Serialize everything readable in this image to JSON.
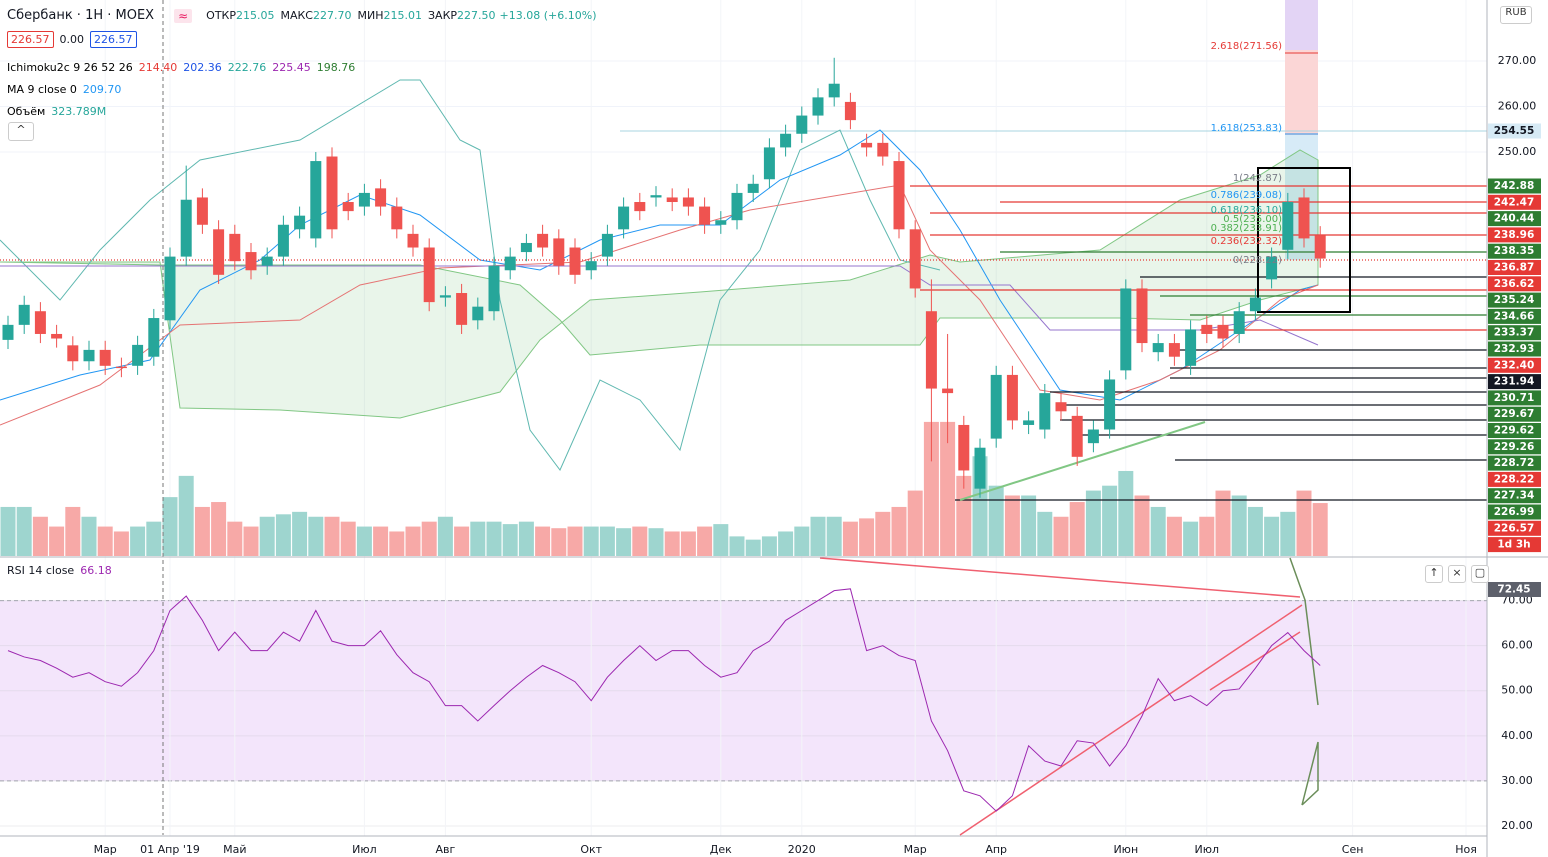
{
  "header": {
    "symbol": "Сбербанк · 1Н · MOEX",
    "ohlc": [
      {
        "label": "ОТКР",
        "value": "215.05"
      },
      {
        "label": "МАКС",
        "value": "227.70"
      },
      {
        "label": "МИН",
        "value": "215.01"
      },
      {
        "label": "ЗАКР",
        "value": "227.50"
      }
    ],
    "change": "+13.08 (+6.10%)",
    "boxes": [
      "226.57",
      "0.00",
      "226.57"
    ],
    "indicators": [
      {
        "name": "Ichimoku2c 9 26 52 26",
        "values": [
          "214.40",
          "202.36",
          "222.76",
          "225.45",
          "198.76"
        ],
        "colors": [
          "#e53935",
          "#1e53e5",
          "#26a69a",
          "#9c27b0",
          "#2e7d32"
        ]
      },
      {
        "name": "MA 9 close 0",
        "values": [
          "209.70"
        ],
        "colors": [
          "#2196f3"
        ]
      },
      {
        "name": "Объём",
        "values": [
          "323.789M"
        ],
        "colors": [
          "#26a69a"
        ]
      }
    ],
    "currency": "RUB"
  },
  "price_markers": [
    {
      "label": "254.55",
      "color": "#d6eaf5"
    },
    {
      "label": "242.88",
      "color": "#2e7d32"
    },
    {
      "label": "242.47",
      "color": "#e53935"
    },
    {
      "label": "240.44",
      "color": "#2e7d32"
    },
    {
      "label": "238.96",
      "color": "#e53935"
    },
    {
      "label": "238.35",
      "color": "#2e7d32"
    },
    {
      "label": "236.87",
      "color": "#e53935"
    },
    {
      "label": "236.62",
      "color": "#e53935"
    },
    {
      "label": "235.24",
      "color": "#2e7d32"
    },
    {
      "label": "234.66",
      "color": "#2e7d32"
    },
    {
      "label": "233.37",
      "color": "#2e7d32"
    },
    {
      "label": "232.93",
      "color": "#2e7d32"
    },
    {
      "label": "232.40",
      "color": "#e53935"
    },
    {
      "label": "231.94",
      "color": "#131722"
    },
    {
      "label": "230.71",
      "color": "#2e7d32"
    },
    {
      "label": "229.67",
      "color": "#2e7d32"
    },
    {
      "label": "229.62",
      "color": "#2e7d32"
    },
    {
      "label": "229.26",
      "color": "#2e7d32"
    },
    {
      "label": "228.72",
      "color": "#2e7d32"
    },
    {
      "label": "228.22",
      "color": "#e53935"
    },
    {
      "label": "227.34",
      "color": "#2e7d32"
    },
    {
      "label": "226.99",
      "color": "#2e7d32"
    },
    {
      "label": "226.57",
      "color": "#e53935"
    },
    {
      "label": "1d 3h",
      "color": "#e53935"
    }
  ],
  "fib_levels": [
    {
      "label": "2.618(271.56)",
      "color": "#e53935"
    },
    {
      "label": "1.618(253.83)",
      "color": "#2196f3"
    },
    {
      "label": "1(242.87)",
      "color": "#787b86"
    },
    {
      "label": "0.786(239.08)",
      "color": "#2196f3"
    },
    {
      "label": "0.618(236.10)",
      "color": "#26a69a"
    },
    {
      "label": "0.5(235.00)",
      "color": "#4caf50"
    },
    {
      "label": "0.382(233.91)",
      "color": "#4caf50"
    },
    {
      "label": "0.236(232.32)",
      "color": "#e53935"
    },
    {
      "label": "0(228.22)",
      "color": "#787b86"
    }
  ],
  "chart_data": [
    {
      "type": "candlestick",
      "up_color": "#26a69a",
      "down_color": "#ef5350",
      "volume_up_color": "#9ed5cf",
      "volume_down_color": "#f7a9a7",
      "ylim": [
        161.2,
        283.4
      ],
      "yticks": [
        {
          "value": 270,
          "label": "270.00"
        },
        {
          "value": 260,
          "label": "260.00"
        },
        {
          "value": 250,
          "label": "250.00"
        }
      ],
      "volume_ylim": [
        0,
        3400
      ],
      "categories": [
        null,
        null,
        null,
        null,
        null,
        null,
        "Мар",
        null,
        null,
        null,
        "01 Апр '19",
        null,
        null,
        null,
        "Май",
        null,
        null,
        null,
        null,
        null,
        null,
        null,
        "Июл",
        null,
        null,
        null,
        null,
        "Авг",
        null,
        null,
        null,
        null,
        null,
        null,
        null,
        null,
        "Окт",
        null,
        null,
        null,
        null,
        null,
        null,
        null,
        "Дек",
        null,
        null,
        null,
        null,
        "2020",
        null,
        null,
        null,
        null,
        null,
        null,
        "Мар",
        null,
        null,
        null,
        null,
        "Апр",
        null,
        null,
        null,
        null,
        null,
        null,
        null,
        "Июн",
        null,
        null,
        null,
        null,
        "Июл",
        null,
        null,
        null,
        null,
        null,
        null,
        null,
        null,
        "Сен",
        null,
        null,
        null,
        null,
        null,
        null,
        "Ноя"
      ],
      "open": [
        208.7,
        212,
        215,
        210,
        207.5,
        204,
        206.5,
        202.8,
        203,
        205,
        213,
        227,
        240,
        233,
        232,
        228,
        225,
        227,
        233,
        231,
        249,
        239,
        238,
        242,
        238,
        232,
        229,
        218,
        219,
        213,
        215,
        224,
        228,
        232,
        231,
        229,
        224,
        227,
        233,
        239,
        240,
        240,
        240,
        238,
        234,
        235,
        241,
        244,
        251,
        254,
        258,
        262,
        261,
        252,
        252,
        248,
        233,
        215,
        198,
        190,
        176,
        187,
        201,
        190,
        189,
        195,
        192,
        186,
        189,
        202,
        220,
        206,
        208,
        203,
        212,
        212,
        210,
        215,
        222,
        228.5,
        240,
        231.7,
        null,
        null,
        null,
        null,
        null,
        null,
        null,
        null,
        null
      ],
      "high": [
        214,
        218.4,
        217,
        212,
        209.5,
        208.5,
        208.5,
        204.8,
        209.6,
        215.5,
        229,
        247,
        242,
        235,
        234,
        230,
        229,
        236,
        238,
        250,
        251,
        241,
        243,
        244,
        240,
        234,
        231,
        220.5,
        221,
        218,
        227,
        229,
        232,
        234,
        233,
        231,
        228,
        234,
        240,
        241,
        242.5,
        242,
        242,
        240,
        237,
        243,
        245,
        253,
        256,
        260,
        264,
        270.7,
        263,
        254,
        254,
        250,
        235,
        222,
        210,
        192,
        187,
        203,
        203,
        193,
        199,
        197,
        194,
        191,
        202,
        222,
        222,
        210,
        210,
        213,
        214,
        214,
        217,
        220,
        229,
        241,
        242,
        233.7,
        null,
        null,
        null,
        null,
        null,
        null,
        null,
        null,
        null
      ],
      "low": [
        206.7,
        210,
        208,
        207,
        202,
        202,
        201,
        200.5,
        201,
        203,
        211,
        225,
        232,
        221,
        224,
        222,
        223,
        225,
        231,
        229,
        231,
        235,
        236,
        236,
        231,
        227,
        215,
        216,
        210,
        211,
        213,
        222,
        226,
        227,
        223,
        221,
        222,
        225,
        231,
        235,
        238,
        237,
        236,
        232,
        232,
        233,
        239,
        242,
        249,
        252,
        256,
        260,
        255,
        249,
        247,
        231,
        218,
        182,
        186,
        176,
        174,
        185,
        189,
        188,
        187,
        191,
        181,
        184,
        187,
        200,
        206,
        204,
        203,
        201,
        208,
        207,
        208,
        213,
        220,
        226.5,
        229,
        224.57,
        null,
        null,
        null,
        null,
        null,
        null,
        null,
        null,
        null
      ],
      "close": [
        212,
        216.4,
        210,
        209,
        204,
        206.5,
        203,
        202.5,
        207.6,
        213.5,
        227,
        239.5,
        234,
        223,
        226,
        224,
        227,
        234,
        236,
        248,
        233,
        237,
        241,
        238,
        233,
        229,
        217,
        218.5,
        212,
        216,
        225,
        227,
        230,
        229,
        225,
        223,
        226,
        232,
        238,
        237,
        240.5,
        239,
        238,
        234,
        235,
        241,
        243,
        251,
        254,
        258,
        262,
        265,
        257,
        251,
        249,
        233,
        220,
        198,
        197,
        180,
        185,
        201,
        191,
        191,
        197,
        193,
        183,
        189,
        200,
        220,
        208,
        208,
        205,
        211,
        210,
        209,
        215,
        218,
        227,
        239,
        231,
        226.57,
        null,
        null,
        null,
        null,
        null,
        null,
        null,
        null,
        null
      ],
      "volume": [
        300,
        300,
        240,
        180,
        300,
        240,
        180,
        150,
        180,
        210,
        360,
        490,
        300,
        330,
        210,
        180,
        240,
        255,
        270,
        240,
        240,
        210,
        180,
        180,
        150,
        180,
        210,
        240,
        180,
        210,
        210,
        195,
        210,
        180,
        170,
        180,
        180,
        180,
        170,
        180,
        170,
        150,
        150,
        180,
        195,
        120,
        100,
        120,
        150,
        180,
        240,
        240,
        210,
        230,
        270,
        300,
        400,
        820,
        820,
        490,
        610,
        430,
        370,
        370,
        270,
        240,
        330,
        400,
        430,
        520,
        370,
        300,
        240,
        210,
        240,
        400,
        370,
        300,
        240,
        270,
        400,
        323.789,
        null,
        null,
        null,
        null,
        null,
        null,
        null,
        null,
        null
      ]
    },
    {
      "type": "line",
      "title": "RSI 14 close",
      "value_label": "66.18",
      "marker": "72.45",
      "color": "#9c27b0",
      "band": [
        30,
        70
      ],
      "band_color": "#f3e5fb",
      "ylim": [
        18,
        79
      ],
      "yticks": [
        {
          "value": 20,
          "label": "20.00"
        },
        {
          "value": 30,
          "label": "30.00"
        },
        {
          "value": 40,
          "label": "40.00"
        },
        {
          "value": 50,
          "label": "50.00"
        },
        {
          "value": 60,
          "label": "60.00"
        },
        {
          "value": 70,
          "label": "70.00"
        }
      ],
      "values": [
        58.9,
        57.5,
        56.7,
        55,
        53,
        54,
        52,
        51,
        54,
        58.9,
        67.8,
        71,
        65.6,
        58.9,
        63,
        58.9,
        58.9,
        63,
        61,
        67.8,
        61,
        60,
        60,
        63.3,
        58,
        54,
        52,
        46.7,
        46.7,
        43.3,
        46.7,
        50,
        53,
        55.6,
        54,
        52,
        47.8,
        53,
        56.7,
        60,
        56.7,
        58.9,
        58.9,
        55.6,
        53,
        54,
        58.9,
        61,
        65.6,
        67.8,
        70,
        72.2,
        72.6,
        58.9,
        60,
        57.8,
        56.7,
        43.3,
        36.7,
        27.8,
        26.7,
        23.3,
        26.7,
        37.8,
        34.4,
        33.3,
        38.9,
        38.4,
        33.3,
        37.8,
        44.4,
        52.7,
        47.8,
        48.9,
        46.7,
        50,
        50.4,
        55,
        60,
        62.9,
        58.9,
        55.6,
        null,
        null,
        null,
        null,
        null,
        null,
        null,
        null,
        null
      ]
    }
  ]
}
